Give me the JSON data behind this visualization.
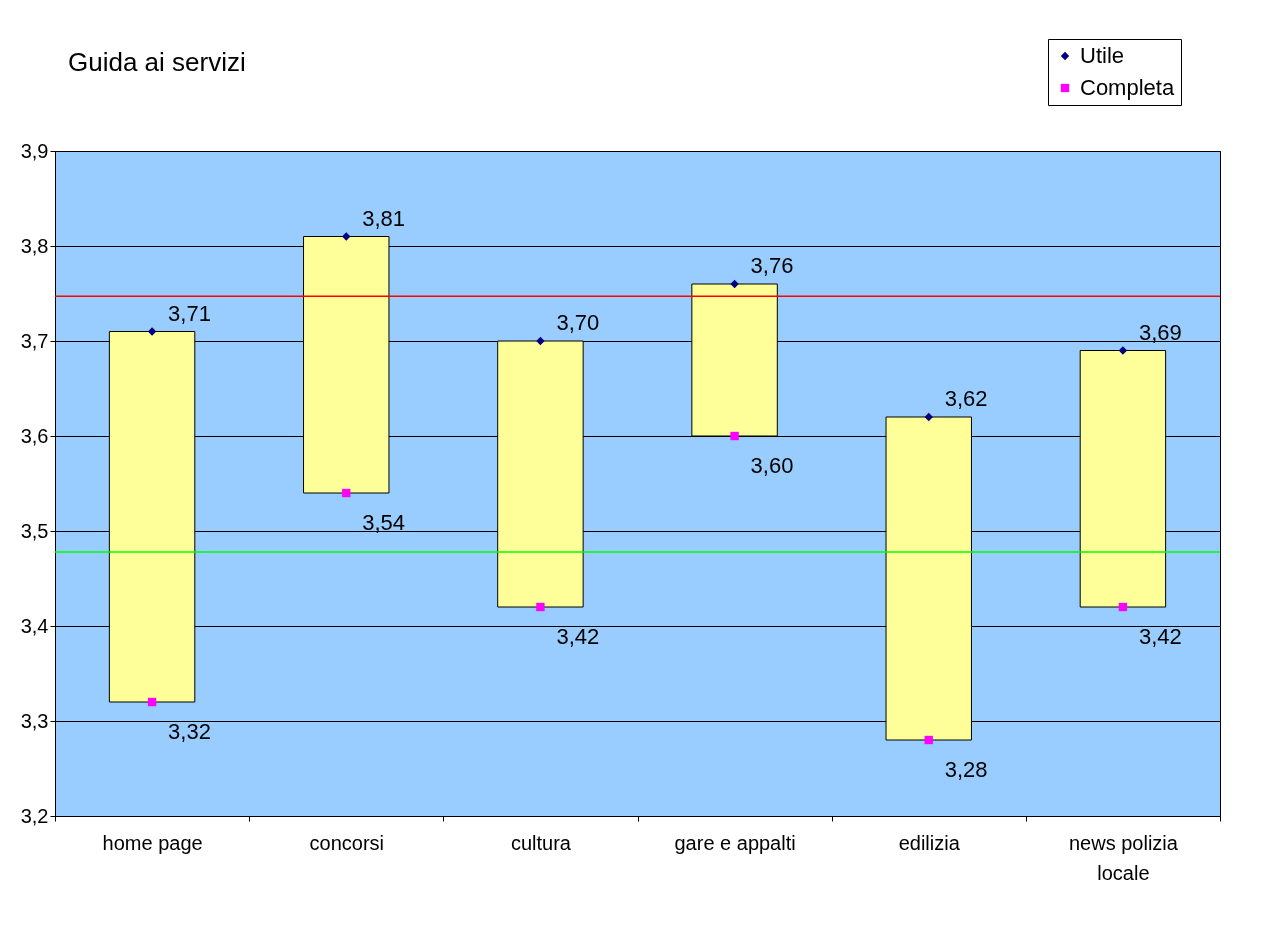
{
  "chart_data": {
    "type": "bar",
    "title": "Guida ai servizi",
    "categories": [
      "home page",
      "concorsi",
      "cultura",
      "gare e appalti",
      "edilizia",
      "news polizia locale"
    ],
    "series": [
      {
        "type": "bar",
        "color": "#ffff99",
        "base": [
          3.32,
          3.54,
          3.42,
          3.6,
          3.28,
          3.42
        ],
        "values": [
          0.39,
          0.27,
          0.28,
          0.16,
          0.34,
          0.27
        ]
      },
      {
        "type": "scatter",
        "name": "Utile",
        "color": "#000080",
        "marker": "diamond",
        "values": [
          3.71,
          3.81,
          3.7,
          3.76,
          3.62,
          3.69
        ],
        "value_labels": [
          "3,71",
          "3,81",
          "3,70",
          "3,76",
          "3,62",
          "3,69"
        ]
      },
      {
        "type": "scatter",
        "name": "Completa",
        "color": "#ff00ff",
        "marker": "square",
        "values": [
          3.32,
          3.54,
          3.42,
          3.6,
          3.28,
          3.42
        ],
        "value_labels": [
          "3,32",
          "3,54",
          "3,42",
          "3,60",
          "3,28",
          "3,42"
        ]
      }
    ],
    "ylim": [
      3.2,
      3.9
    ],
    "yticks": [
      {
        "value": 3.2,
        "label": "3,2"
      },
      {
        "value": 3.3,
        "label": "3,3"
      },
      {
        "value": 3.4,
        "label": "3,4"
      },
      {
        "value": 3.5,
        "label": "3,5"
      },
      {
        "value": 3.6,
        "label": "3,6"
      },
      {
        "value": 3.7,
        "label": "3,7"
      },
      {
        "value": 3.8,
        "label": "3,8"
      },
      {
        "value": 3.9,
        "label": "3,9"
      }
    ],
    "ref_lines": [
      {
        "axis": "y",
        "value": 3.747,
        "color": "#ff0000"
      },
      {
        "axis": "y",
        "value": 3.478,
        "color": "#00ff00"
      }
    ],
    "grid": "y",
    "legend": "top right"
  }
}
